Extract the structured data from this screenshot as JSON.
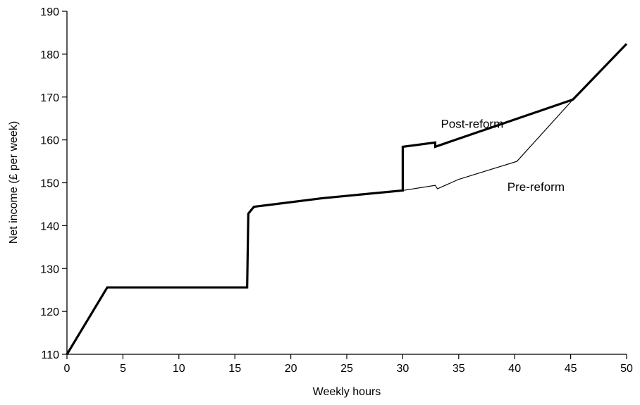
{
  "chart_data": {
    "type": "line",
    "xlabel": "Weekly hours",
    "ylabel": "Net income (£ per week)",
    "xlim": [
      0,
      50
    ],
    "ylim": [
      110,
      190
    ],
    "xticks": [
      0,
      5,
      10,
      15,
      20,
      25,
      30,
      35,
      40,
      45,
      50
    ],
    "yticks": [
      110,
      120,
      130,
      140,
      150,
      160,
      170,
      180,
      190
    ],
    "grid": false,
    "legend": "none",
    "series": [
      {
        "name": "Post-reform",
        "style": "thick",
        "x": [
          0,
          3.6,
          16.1,
          16.2,
          16.7,
          22.8,
          30.0,
          30.0,
          32.9,
          32.9,
          45.2,
          50.0
        ],
        "y": [
          110.0,
          125.6,
          125.6,
          142.8,
          144.4,
          146.4,
          148.2,
          158.4,
          159.4,
          158.4,
          169.4,
          182.4
        ]
      },
      {
        "name": "Pre-reform",
        "style": "thin",
        "x": [
          30.0,
          32.9,
          33.1,
          35.0,
          40.2,
          45.2
        ],
        "y": [
          148.2,
          149.4,
          148.6,
          150.8,
          155.0,
          169.4
        ]
      }
    ],
    "annotations": [
      {
        "text": "Post-reform",
        "x": 36.2,
        "y": 162.8
      },
      {
        "text": "Pre-reform",
        "x": 41.9,
        "y": 148.1
      }
    ]
  }
}
